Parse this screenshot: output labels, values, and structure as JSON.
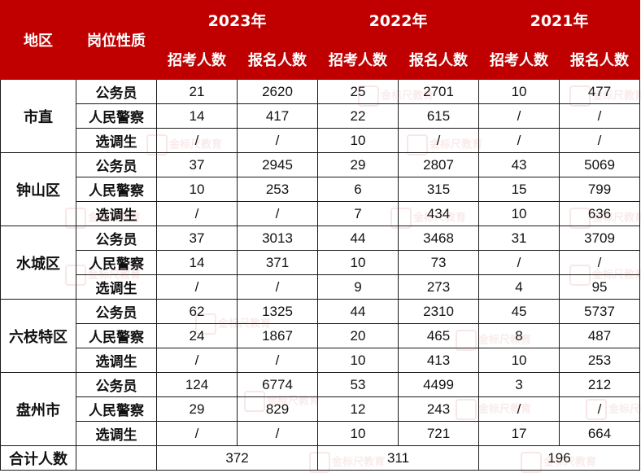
{
  "header": {
    "region": "地区",
    "post_type": "岗位性质",
    "years": [
      "2023年",
      "2022年",
      "2021年"
    ],
    "sub": [
      "招考人数",
      "报名人数",
      "招考人数",
      "报名人数",
      "招考人数",
      "报名人数"
    ]
  },
  "groups": [
    {
      "region": "市直",
      "rows": [
        {
          "type": "公务员",
          "cells": [
            "21",
            "2620",
            "25",
            "2701",
            "10",
            "477"
          ]
        },
        {
          "type": "人民警察",
          "cells": [
            "14",
            "417",
            "22",
            "615",
            "/",
            "/"
          ]
        },
        {
          "type": "选调生",
          "cells": [
            "/",
            "/",
            "10",
            "/",
            "/",
            "/"
          ]
        }
      ]
    },
    {
      "region": "钟山区",
      "rows": [
        {
          "type": "公务员",
          "cells": [
            "37",
            "2945",
            "29",
            "2807",
            "43",
            "5069"
          ]
        },
        {
          "type": "人民警察",
          "cells": [
            "10",
            "253",
            "6",
            "315",
            "15",
            "799"
          ]
        },
        {
          "type": "选调生",
          "cells": [
            "/",
            "/",
            "7",
            "434",
            "10",
            "636"
          ]
        }
      ]
    },
    {
      "region": "水城区",
      "rows": [
        {
          "type": "公务员",
          "cells": [
            "37",
            "3013",
            "44",
            "3468",
            "31",
            "3709"
          ]
        },
        {
          "type": "人民警察",
          "cells": [
            "14",
            "371",
            "10",
            "73",
            "/",
            "/"
          ]
        },
        {
          "type": "选调生",
          "cells": [
            "/",
            "/",
            "9",
            "273",
            "4",
            "95"
          ]
        }
      ]
    },
    {
      "region": "六枝特区",
      "rows": [
        {
          "type": "公务员",
          "cells": [
            "62",
            "1325",
            "44",
            "2310",
            "45",
            "5737"
          ]
        },
        {
          "type": "人民警察",
          "cells": [
            "24",
            "1867",
            "20",
            "465",
            "8",
            "487"
          ]
        },
        {
          "type": "选调生",
          "cells": [
            "/",
            "/",
            "10",
            "413",
            "10",
            "253"
          ]
        }
      ]
    },
    {
      "region": "盘州市",
      "rows": [
        {
          "type": "公务员",
          "cells": [
            "124",
            "6774",
            "53",
            "4499",
            "3",
            "212"
          ]
        },
        {
          "type": "人民警察",
          "cells": [
            "29",
            "829",
            "12",
            "243",
            "/",
            "/"
          ]
        },
        {
          "type": "选调生",
          "cells": [
            "/",
            "/",
            "10",
            "721",
            "17",
            "664"
          ]
        }
      ]
    }
  ],
  "total": {
    "label": "合计人数",
    "values": [
      "372",
      "311",
      "196"
    ]
  },
  "watermark": {
    "text": "金标尺教育"
  },
  "colors": {
    "header_bg": "#c00000",
    "header_text": "#ffffff",
    "border": "#1a1a1a"
  }
}
